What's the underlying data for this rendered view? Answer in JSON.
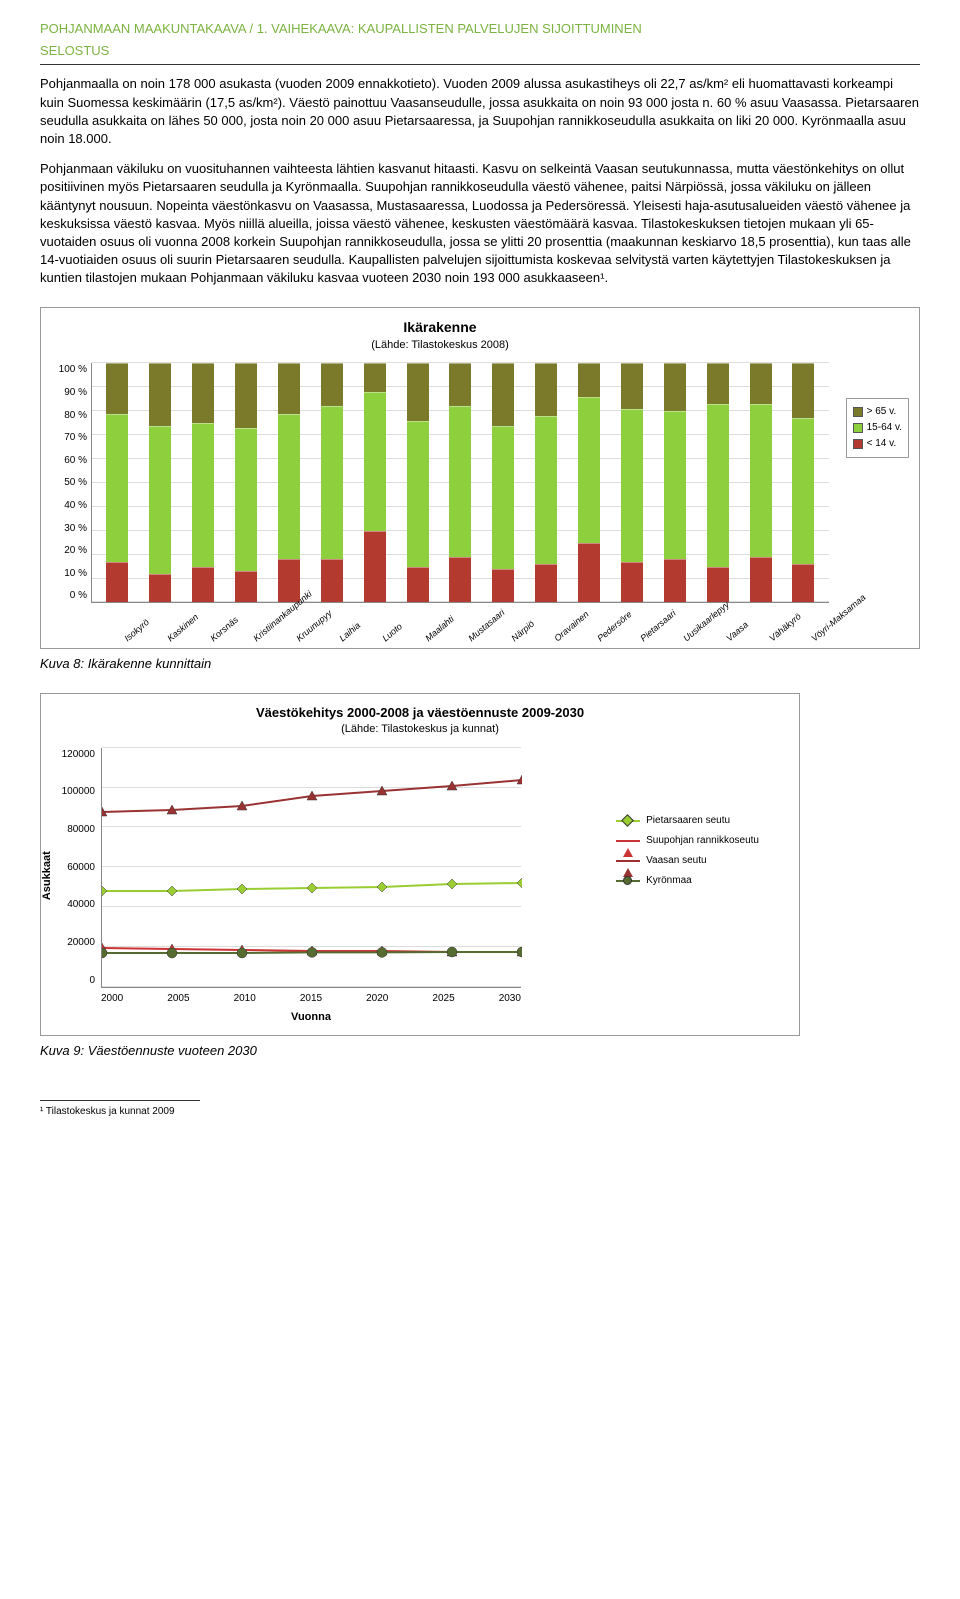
{
  "header": {
    "line1": "POHJANMAAN MAAKUNTAKAAVA / 1. VAIHEKAAVA: KAUPALLISTEN PALVELUJEN SIJOITTUMINEN",
    "line2": "SELOSTUS"
  },
  "body": {
    "p1": "Pohjanmaalla on noin 178 000 asukasta (vuoden 2009 ennakkotieto). Vuoden 2009 alussa asukastiheys oli 22,7 as/km² eli huomattavasti korkeampi kuin Suomessa keskimäärin (17,5 as/km²). Väestö painottuu Vaasanseudulle, jossa asukkaita on noin 93 000 josta n. 60 % asuu Vaasassa. Pietarsaaren seudulla asukkaita on lähes 50 000, josta noin 20 000 asuu Pietarsaaressa, ja Suupohjan rannikkoseudulla asukkaita on liki 20 000. Kyrönmaalla asuu noin 18.000.",
    "p2": "Pohjanmaan väkiluku on vuosituhannen vaihteesta lähtien kasvanut hitaasti. Kasvu on selkeintä Vaasan seutukunnassa, mutta väestönkehitys on ollut positiivinen myös Pietarsaaren seudulla ja Kyrönmaalla. Suupohjan rannikkoseudulla väestö vähenee, paitsi Närpiössä, jossa väkiluku on jälleen kääntynyt nousuun. Nopeinta väestönkasvu on Vaasassa, Mustasaaressa, Luodossa ja Pedersöressä. Yleisesti haja-asutusalueiden väestö vähenee ja keskuksissa väestö kasvaa. Myös niillä alueilla, joissa väestö vähenee, keskusten väestömäärä kasvaa. Tilastokeskuksen tietojen mukaan yli 65-vuotaiden osuus oli vuonna 2008 korkein Suupohjan rannikkoseudulla, jossa se ylitti 20 prosenttia (maakunnan keskiarvo 18,5 prosenttia), kun taas alle 14-vuotiaiden osuus oli suurin Pietarsaaren seudulla. Kaupallisten palvelujen sijoittumista koskevaa selvitystä varten käytettyjen Tilastokeskuksen ja kuntien tilastojen mukaan Pohjanmaan väkiluku kasvaa vuoteen 2030 noin 193 000 asukkaaseen¹."
  },
  "stacked_chart": {
    "title": "Ikärakenne",
    "subtitle": "(Lähde: Tilastokeskus 2008)",
    "ylabel_suffix": " %",
    "yticks": [
      0,
      10,
      20,
      30,
      40,
      50,
      60,
      70,
      80,
      90,
      100
    ],
    "categories": [
      "Isokyrö",
      "Kaskinen",
      "Korsnäs",
      "Kristiinankaupunki",
      "Kruunupyy",
      "Laihia",
      "Luoto",
      "Maalahti",
      "Mustasaari",
      "Närpiö",
      "Oravainen",
      "Pedersöre",
      "Pietarsaari",
      "Uusikaarlepyy",
      "Vaasa",
      "Vähäkyrö",
      "Vöyri-Maksamaa"
    ],
    "series": [
      {
        "name": "< 14 v.",
        "color": "#b23a2e"
      },
      {
        "name": "15-64 v.",
        "color": "#8ecf3e"
      },
      {
        "name": "> 65 v.",
        "color": "#7a7a2a"
      }
    ],
    "data": [
      {
        "lt14": 17,
        "mid": 62,
        "gt65": 21
      },
      {
        "lt14": 12,
        "mid": 62,
        "gt65": 26
      },
      {
        "lt14": 15,
        "mid": 60,
        "gt65": 25
      },
      {
        "lt14": 13,
        "mid": 60,
        "gt65": 27
      },
      {
        "lt14": 18,
        "mid": 61,
        "gt65": 21
      },
      {
        "lt14": 18,
        "mid": 64,
        "gt65": 18
      },
      {
        "lt14": 30,
        "mid": 58,
        "gt65": 12
      },
      {
        "lt14": 15,
        "mid": 61,
        "gt65": 24
      },
      {
        "lt14": 19,
        "mid": 63,
        "gt65": 18
      },
      {
        "lt14": 14,
        "mid": 60,
        "gt65": 26
      },
      {
        "lt14": 16,
        "mid": 62,
        "gt65": 22
      },
      {
        "lt14": 25,
        "mid": 61,
        "gt65": 14
      },
      {
        "lt14": 17,
        "mid": 64,
        "gt65": 19
      },
      {
        "lt14": 18,
        "mid": 62,
        "gt65": 20
      },
      {
        "lt14": 15,
        "mid": 68,
        "gt65": 17
      },
      {
        "lt14": 19,
        "mid": 64,
        "gt65": 17
      },
      {
        "lt14": 16,
        "mid": 61,
        "gt65": 23
      }
    ],
    "legend_labels": [
      "> 65 v.",
      "15-64 v.",
      "< 14 v."
    ]
  },
  "caption1": "Kuva 8: Ikärakenne kunnittain",
  "line_chart": {
    "title": "Väestökehitys 2000-2008 ja väestöennuste 2009-2030",
    "subtitle": "(Lähde: Tilastokeskus ja kunnat)",
    "ylabel": "Asukkaat",
    "xlabel": "Vuonna",
    "yticks": [
      0,
      20000,
      40000,
      60000,
      80000,
      100000,
      120000
    ],
    "xticks": [
      2000,
      2005,
      2010,
      2015,
      2020,
      2025,
      2030
    ],
    "series": [
      {
        "name": "Pietarsaaren seutu",
        "color": "#9acd32",
        "marker": "diamond",
        "values": [
          48500,
          48500,
          49500,
          50000,
          50500,
          52000,
          52500
        ]
      },
      {
        "name": "Suupohjan rannikkoseutu",
        "color": "#cc3333",
        "marker": "triangle",
        "values": [
          20000,
          19500,
          19000,
          18500,
          18500,
          18000,
          18000
        ]
      },
      {
        "name": "Vaasan seutu",
        "color": "#993333",
        "marker": "triangle",
        "values": [
          88000,
          89000,
          91000,
          96000,
          98500,
          101000,
          104000
        ]
      },
      {
        "name": "Kyrönmaa",
        "color": "#556b2f",
        "marker": "circle",
        "values": [
          17500,
          17500,
          17500,
          17800,
          17800,
          18000,
          18000
        ]
      }
    ]
  },
  "caption2": "Kuva 9: Väestöennuste vuoteen 2030",
  "footnote": "¹ Tilastokeskus ja kunnat 2009"
}
